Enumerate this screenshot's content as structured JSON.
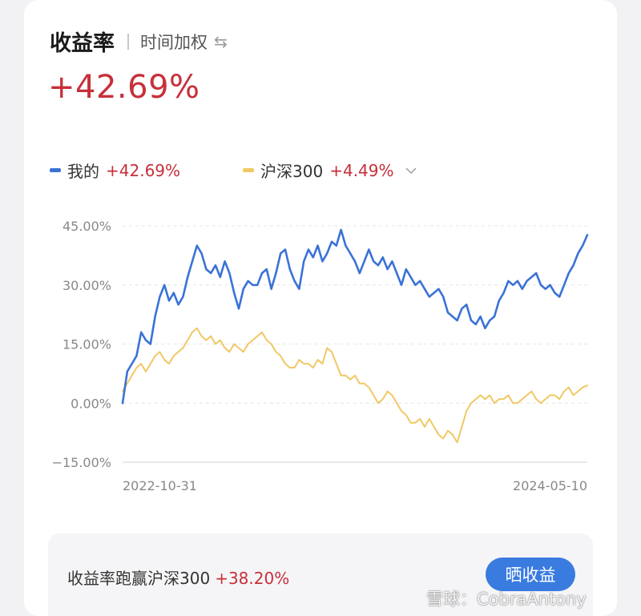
{
  "header": {
    "title": "收益率",
    "subtitle": "时间加权",
    "swap_icon": "swap-arrows-icon"
  },
  "summary": {
    "value": "+42.69%"
  },
  "legend": {
    "items": [
      {
        "name": "我的",
        "value": "+42.69%",
        "color": "#3a72d6"
      },
      {
        "name": "沪深300",
        "value": "+4.49%",
        "color": "#f0c864"
      }
    ],
    "expand_icon": "chevron-down-icon"
  },
  "chart_data": {
    "type": "line",
    "x_start": "2022-10-31",
    "x_end": "2024-05-10",
    "x_tick_labels": [
      "2022-10-31",
      "2024-05-10"
    ],
    "y_tick_labels": [
      "45.00%",
      "30.00%",
      "15.00%",
      "0.00%",
      "−15.00%"
    ],
    "yticks": [
      45,
      30,
      15,
      0,
      -15
    ],
    "ylim": [
      -15,
      45
    ],
    "grid": true,
    "series": [
      {
        "name": "我的",
        "color": "#3a72d6",
        "x": [
          0,
          0.01,
          0.02,
          0.03,
          0.04,
          0.05,
          0.06,
          0.07,
          0.08,
          0.09,
          0.1,
          0.11,
          0.12,
          0.13,
          0.14,
          0.15,
          0.16,
          0.17,
          0.18,
          0.19,
          0.2,
          0.21,
          0.22,
          0.23,
          0.24,
          0.25,
          0.26,
          0.27,
          0.28,
          0.29,
          0.3,
          0.31,
          0.32,
          0.33,
          0.34,
          0.35,
          0.36,
          0.37,
          0.38,
          0.39,
          0.4,
          0.41,
          0.42,
          0.43,
          0.44,
          0.45,
          0.46,
          0.47,
          0.48,
          0.49,
          0.5,
          0.51,
          0.52,
          0.53,
          0.54,
          0.55,
          0.56,
          0.57,
          0.58,
          0.59,
          0.6,
          0.61,
          0.62,
          0.63,
          0.64,
          0.65,
          0.66,
          0.67,
          0.68,
          0.69,
          0.7,
          0.71,
          0.72,
          0.73,
          0.74,
          0.75,
          0.76,
          0.77,
          0.78,
          0.79,
          0.8,
          0.81,
          0.82,
          0.83,
          0.84,
          0.85,
          0.86,
          0.87,
          0.88,
          0.89,
          0.9,
          0.91,
          0.92,
          0.93,
          0.94,
          0.95,
          0.96,
          0.97,
          0.98,
          0.99,
          1.0
        ],
        "values": [
          0,
          8,
          10,
          12,
          18,
          16,
          15,
          22,
          27,
          30,
          26,
          28,
          25,
          27,
          32,
          36,
          40,
          38,
          34,
          33,
          35,
          32,
          36,
          33,
          28,
          24,
          29,
          31,
          30,
          30,
          33,
          34,
          29,
          33,
          38,
          39,
          34,
          31,
          29,
          36,
          39,
          37,
          40,
          36,
          38,
          41,
          40,
          44,
          40,
          38,
          36,
          33,
          36,
          39,
          36,
          35,
          37,
          34,
          36,
          33,
          30,
          34,
          32,
          30,
          31,
          29,
          27,
          28,
          29,
          27,
          23,
          22,
          21,
          24,
          25,
          21,
          20,
          22,
          19,
          21,
          22,
          26,
          28,
          31,
          30,
          31,
          29,
          31,
          32,
          33,
          30,
          29,
          30,
          28,
          27,
          30,
          33,
          35,
          38,
          40,
          42.69
        ]
      },
      {
        "name": "沪深300",
        "color": "#f0c864",
        "x": [
          0,
          0.01,
          0.02,
          0.03,
          0.04,
          0.05,
          0.06,
          0.07,
          0.08,
          0.09,
          0.1,
          0.11,
          0.12,
          0.13,
          0.14,
          0.15,
          0.16,
          0.17,
          0.18,
          0.19,
          0.2,
          0.21,
          0.22,
          0.23,
          0.24,
          0.25,
          0.26,
          0.27,
          0.28,
          0.29,
          0.3,
          0.31,
          0.32,
          0.33,
          0.34,
          0.35,
          0.36,
          0.37,
          0.38,
          0.39,
          0.4,
          0.41,
          0.42,
          0.43,
          0.44,
          0.45,
          0.46,
          0.47,
          0.48,
          0.49,
          0.5,
          0.51,
          0.52,
          0.53,
          0.54,
          0.55,
          0.56,
          0.57,
          0.58,
          0.59,
          0.6,
          0.61,
          0.62,
          0.63,
          0.64,
          0.65,
          0.66,
          0.67,
          0.68,
          0.69,
          0.7,
          0.71,
          0.72,
          0.73,
          0.74,
          0.75,
          0.76,
          0.77,
          0.78,
          0.79,
          0.8,
          0.81,
          0.82,
          0.83,
          0.84,
          0.85,
          0.86,
          0.87,
          0.88,
          0.89,
          0.9,
          0.91,
          0.92,
          0.93,
          0.94,
          0.95,
          0.96,
          0.97,
          0.98,
          0.99,
          1.0
        ],
        "values": [
          3,
          5,
          7,
          9,
          10,
          8,
          10,
          12,
          13,
          11,
          10,
          12,
          13,
          14,
          16,
          18,
          19,
          17,
          16,
          17,
          15,
          16,
          14,
          13,
          15,
          14,
          13,
          15,
          16,
          17,
          18,
          16,
          15,
          13,
          12,
          10,
          9,
          9,
          11,
          10,
          10,
          9,
          11,
          10,
          14,
          13,
          10,
          7,
          7,
          6,
          7,
          5,
          5,
          4,
          2,
          0,
          1,
          3,
          2,
          0,
          -2,
          -3,
          -5,
          -5,
          -4,
          -6,
          -4,
          -6,
          -8,
          -9,
          -7,
          -8,
          -10,
          -6,
          -2,
          0,
          1,
          2,
          1,
          2,
          0,
          1,
          1,
          2,
          0,
          0,
          1,
          2,
          3,
          1,
          0,
          1,
          2,
          2,
          1,
          3,
          4,
          2,
          3,
          4,
          4.49
        ]
      }
    ]
  },
  "footer": {
    "label": "收益率跑赢沪深300",
    "value": "+38.20%",
    "button_label": "晒收益"
  },
  "watermark": {
    "text": "雪球：CobraAntony"
  }
}
